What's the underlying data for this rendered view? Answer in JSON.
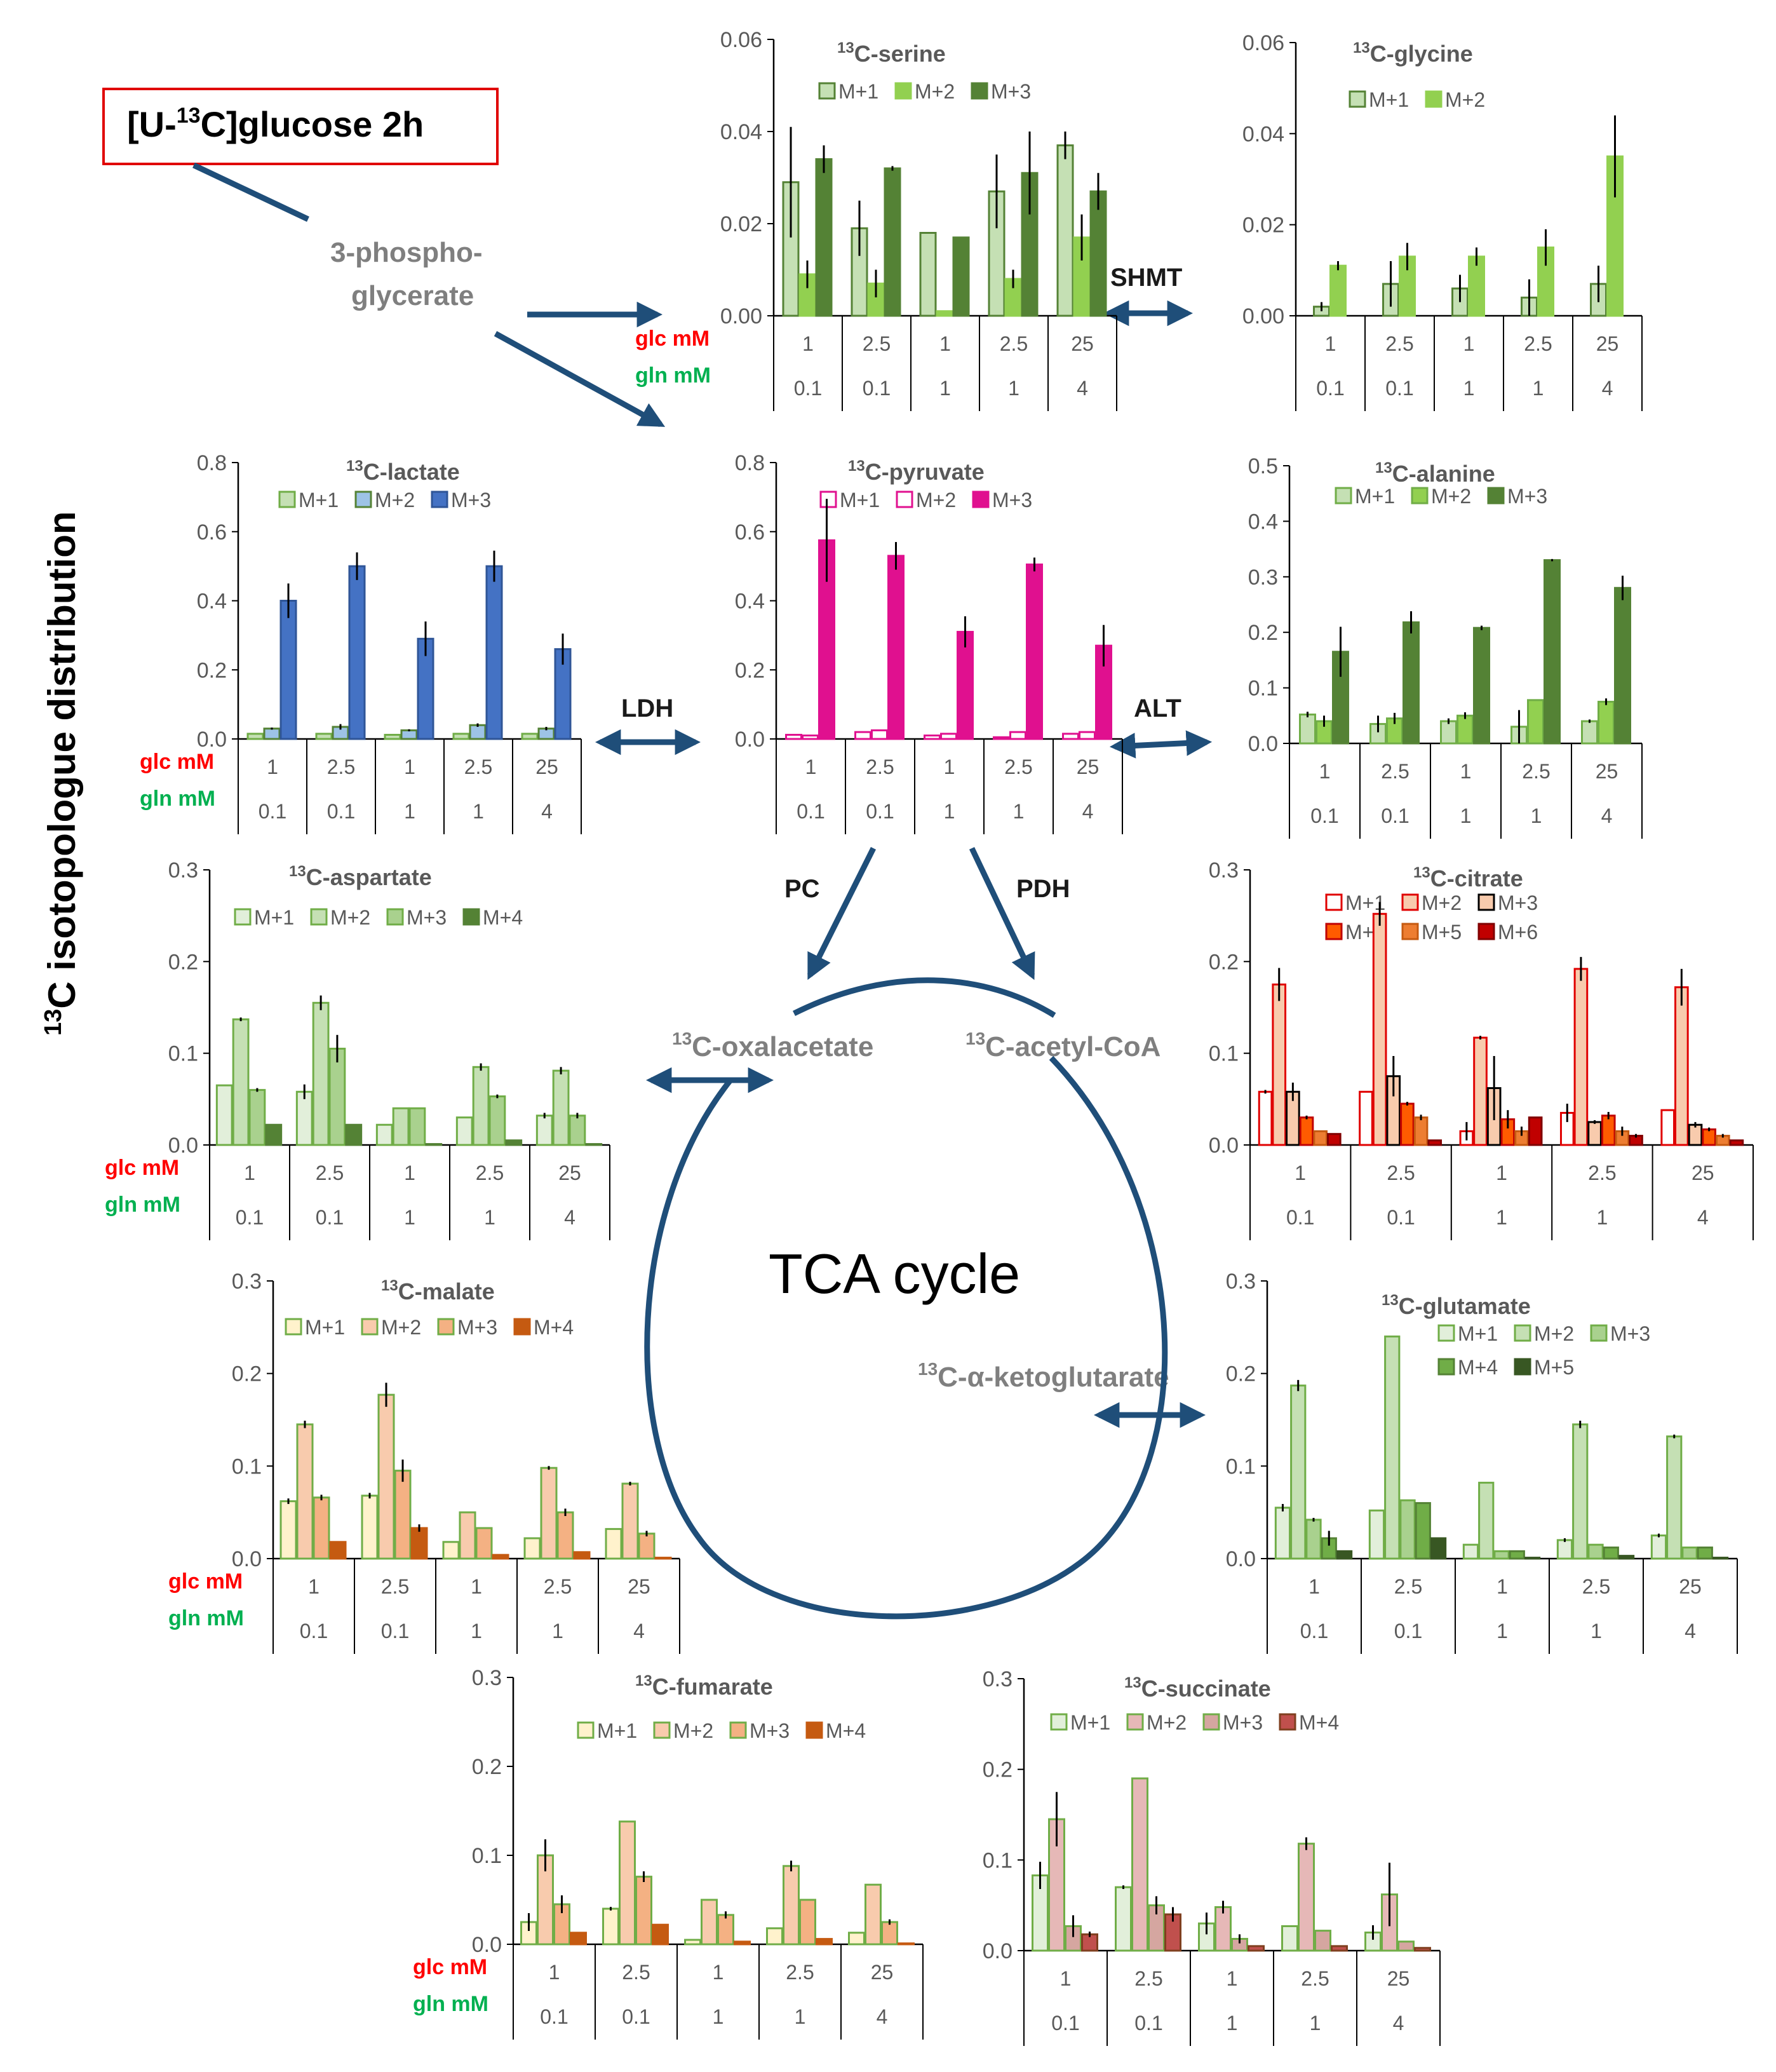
{
  "colors": {
    "arrow": "#1f4e79",
    "glc_label": "#ff0000",
    "gln_label": "#00b050",
    "axis": "#000000",
    "text_gray": "#595959",
    "tracer_box": "#e00000"
  },
  "figure": {
    "y_axis_label_iso": "13",
    "y_axis_label_rest": "C isotopologue distribution",
    "tracer_pre": "[U-",
    "tracer_sup": "13",
    "tracer_post": "C]glucose 2h",
    "tca_label": "TCA cycle",
    "glc_row_label": "glc mM",
    "gln_row_label": "gln mM",
    "metabolites": {
      "pg_line1": "3-phospho-",
      "pg_line2": "glycerate",
      "oaa_sup": "13",
      "oaa": "C-oxalacetate",
      "acoa_sup": "13",
      "acoa": "C-acetyl-CoA",
      "akg_sup": "13",
      "akg": "C-α-ketoglutarate"
    },
    "enzymes": {
      "shmt": "SHMT",
      "ldh": "LDH",
      "alt": "ALT",
      "pc": "PC",
      "pdh": "PDH"
    },
    "conditions_glc": [
      "1",
      "2.5",
      "1",
      "2.5",
      "25"
    ],
    "conditions_gln": [
      "0.1",
      "0.1",
      "1",
      "1",
      "4"
    ]
  },
  "chart_data": [
    {
      "id": "serine",
      "type": "bar",
      "title_sup": "13",
      "title": "C-serine",
      "ylim": [
        0,
        0.06
      ],
      "yticks": [
        "0.00",
        "0.02",
        "0.04",
        "0.06"
      ],
      "categories": [
        "1 / 0.1",
        "2.5 / 0.1",
        "1 / 1",
        "2.5 / 1",
        "25 / 4"
      ],
      "series": [
        {
          "name": "M+1",
          "color": "#c5e0b4",
          "edge": "#548235",
          "values": [
            0.029,
            0.019,
            0.018,
            0.027,
            0.037
          ],
          "err": [
            0.012,
            0.006,
            0,
            0.008,
            0.003
          ]
        },
        {
          "name": "M+2",
          "color": "#92d050",
          "edge": "#92d050",
          "values": [
            0.009,
            0.007,
            0.001,
            0.008,
            0.017
          ],
          "err": [
            0.003,
            0.003,
            0,
            0.002,
            0.005
          ]
        },
        {
          "name": "M+3",
          "color": "#548235",
          "edge": "#548235",
          "values": [
            0.034,
            0.032,
            0.017,
            0.031,
            0.027
          ],
          "err": [
            0.003,
            0.0005,
            0,
            0.009,
            0.004
          ]
        }
      ]
    },
    {
      "id": "glycine",
      "type": "bar",
      "title_sup": "13",
      "title": "C-glycine",
      "ylim": [
        0,
        0.06
      ],
      "yticks": [
        "0.00",
        "0.02",
        "0.04",
        "0.06"
      ],
      "categories": [
        "1 / 0.1",
        "2.5 / 0.1",
        "1 / 1",
        "2.5 / 1",
        "25 / 4"
      ],
      "series": [
        {
          "name": "M+1",
          "color": "#c5e0b4",
          "edge": "#548235",
          "values": [
            0.002,
            0.007,
            0.006,
            0.004,
            0.007
          ],
          "err": [
            0.001,
            0.005,
            0.003,
            0.004,
            0.004
          ]
        },
        {
          "name": "M+2",
          "color": "#92d050",
          "edge": "#92d050",
          "values": [
            0.011,
            0.013,
            0.013,
            0.015,
            0.035
          ],
          "err": [
            0.001,
            0.003,
            0.002,
            0.004,
            0.009
          ]
        }
      ]
    },
    {
      "id": "lactate",
      "type": "bar",
      "title_sup": "13",
      "title": "C-lactate",
      "ylim": [
        0,
        0.8
      ],
      "yticks": [
        "0.0",
        "0.2",
        "0.4",
        "0.6",
        "0.8"
      ],
      "categories": [
        "1 / 0.1",
        "2.5 / 0.1",
        "1 / 1",
        "2.5 / 1",
        "25 / 4"
      ],
      "series": [
        {
          "name": "M+1",
          "color": "#c5e0b4",
          "edge": "#70ad47",
          "values": [
            0.015,
            0.015,
            0.012,
            0.015,
            0.015
          ],
          "err": [
            0,
            0,
            0,
            0,
            0
          ]
        },
        {
          "name": "M+2",
          "color": "#9dc3e6",
          "edge": "#548235",
          "values": [
            0.03,
            0.035,
            0.025,
            0.04,
            0.03
          ],
          "err": [
            0.003,
            0.008,
            0.003,
            0.005,
            0.005
          ]
        },
        {
          "name": "M+3",
          "color": "#4472c4",
          "edge": "#2f5597",
          "values": [
            0.4,
            0.5,
            0.29,
            0.5,
            0.26
          ],
          "err": [
            0.05,
            0.04,
            0.05,
            0.045,
            0.045
          ]
        }
      ]
    },
    {
      "id": "pyruvate",
      "type": "bar",
      "title_sup": "13",
      "title": "C-pyruvate",
      "ylim": [
        0,
        0.8
      ],
      "yticks": [
        "0.0",
        "0.2",
        "0.4",
        "0.6",
        "0.8"
      ],
      "categories": [
        "1 / 0.1",
        "2.5 / 0.1",
        "1 / 1",
        "2.5 / 1",
        "25 / 4"
      ],
      "series": [
        {
          "name": "M+1",
          "color": "#ffffff",
          "edge": "#e0108f",
          "values": [
            0.012,
            0.02,
            0.01,
            0.005,
            0.015
          ],
          "err": [
            0,
            0,
            0,
            0,
            0
          ]
        },
        {
          "name": "M+2",
          "color": "#ffffff",
          "edge": "#e0108f",
          "values": [
            0.01,
            0.025,
            0.015,
            0.02,
            0.02
          ],
          "err": [
            0,
            0,
            0,
            0,
            0
          ]
        },
        {
          "name": "M+3",
          "color": "#e0108f",
          "edge": "#e0108f",
          "values": [
            0.575,
            0.53,
            0.31,
            0.505,
            0.27
          ],
          "err": [
            0.12,
            0.04,
            0.045,
            0.02,
            0.06
          ]
        }
      ]
    },
    {
      "id": "alanine",
      "type": "bar",
      "title_sup": "13",
      "title": "C-alanine",
      "ylim": [
        0,
        0.5
      ],
      "yticks": [
        "0.0",
        "0.1",
        "0.2",
        "0.3",
        "0.4",
        "0.5"
      ],
      "categories": [
        "1 / 0.1",
        "2.5 / 0.1",
        "1 / 1",
        "2.5 / 1",
        "25 / 4"
      ],
      "series": [
        {
          "name": "M+1",
          "color": "#c5e0b4",
          "edge": "#70ad47",
          "values": [
            0.052,
            0.035,
            0.04,
            0.03,
            0.04
          ],
          "err": [
            0.005,
            0.015,
            0.005,
            0.03,
            0.003
          ]
        },
        {
          "name": "M+2",
          "color": "#92d050",
          "edge": "#70ad47",
          "values": [
            0.04,
            0.045,
            0.05,
            0.078,
            0.075
          ],
          "err": [
            0.01,
            0.01,
            0.006,
            0,
            0.006
          ]
        },
        {
          "name": "M+3",
          "color": "#548235",
          "edge": "#548235",
          "values": [
            0.165,
            0.218,
            0.208,
            0.33,
            0.28
          ],
          "err": [
            0.045,
            0.02,
            0.004,
            0.002,
            0.022
          ]
        }
      ]
    },
    {
      "id": "aspartate",
      "type": "bar",
      "title_sup": "13",
      "title": "C-aspartate",
      "ylim": [
        0,
        0.3
      ],
      "yticks": [
        "0.0",
        "0.1",
        "0.2",
        "0.3"
      ],
      "categories": [
        "1 / 0.1",
        "2.5 / 0.1",
        "1 / 1",
        "2.5 / 1",
        "25 / 4"
      ],
      "series": [
        {
          "name": "M+1",
          "color": "#e2efda",
          "edge": "#70ad47",
          "values": [
            0.065,
            0.058,
            0.022,
            0.03,
            0.032
          ],
          "err": [
            0,
            0.008,
            0,
            0,
            0.003
          ]
        },
        {
          "name": "M+2",
          "color": "#c5e0b4",
          "edge": "#70ad47",
          "values": [
            0.137,
            0.155,
            0.04,
            0.085,
            0.081
          ],
          "err": [
            0.002,
            0.008,
            0,
            0.004,
            0.004
          ]
        },
        {
          "name": "M+3",
          "color": "#a9d18e",
          "edge": "#70ad47",
          "values": [
            0.06,
            0.105,
            0.04,
            0.053,
            0.032
          ],
          "err": [
            0.002,
            0.015,
            0,
            0.002,
            0.003
          ]
        },
        {
          "name": "M+4",
          "color": "#548235",
          "edge": "#548235",
          "values": [
            0.022,
            0.022,
            0.001,
            0.005,
            0.001
          ],
          "err": [
            0,
            0,
            0,
            0,
            0
          ]
        }
      ]
    },
    {
      "id": "citrate",
      "type": "bar",
      "title_sup": "13",
      "title": "C-citrate",
      "ylim": [
        0,
        0.3
      ],
      "yticks": [
        "0.0",
        "0.1",
        "0.2",
        "0.3"
      ],
      "categories": [
        "1 / 0.1",
        "2.5 / 0.1",
        "1 / 1",
        "2.5 / 1",
        "25 / 4"
      ],
      "series": [
        {
          "name": "M+1",
          "color": "#ffffff",
          "edge": "#e00000",
          "values": [
            0.058,
            0.058,
            0.015,
            0.035,
            0.038
          ],
          "err": [
            0.002,
            0,
            0.01,
            0.01,
            0
          ]
        },
        {
          "name": "M+2",
          "color": "#f8cbad",
          "edge": "#e00000",
          "values": [
            0.175,
            0.252,
            0.117,
            0.192,
            0.172
          ],
          "err": [
            0.018,
            0.013,
            0.002,
            0.013,
            0.02
          ]
        },
        {
          "name": "M+3",
          "color": "#f8cbad",
          "edge": "#000000",
          "values": [
            0.058,
            0.075,
            0.062,
            0.025,
            0.022
          ],
          "err": [
            0.01,
            0.022,
            0.035,
            0.002,
            0.003
          ]
        },
        {
          "name": "M+4",
          "color": "#ff5b00",
          "edge": "#c00000",
          "values": [
            0.03,
            0.045,
            0.028,
            0.032,
            0.017
          ],
          "err": [
            0.002,
            0.002,
            0.01,
            0.004,
            0.002
          ]
        },
        {
          "name": "M+5",
          "color": "#ed7d31",
          "edge": "#c55a11",
          "values": [
            0.015,
            0.03,
            0.015,
            0.015,
            0.01
          ],
          "err": [
            0,
            0.003,
            0.005,
            0.005,
            0.002
          ]
        },
        {
          "name": "M+6",
          "color": "#c00000",
          "edge": "#800000",
          "values": [
            0.012,
            0.005,
            0.03,
            0.01,
            0.005
          ],
          "err": [
            0,
            0,
            0,
            0.002,
            0
          ]
        }
      ]
    },
    {
      "id": "malate",
      "type": "bar",
      "title_sup": "13",
      "title": "C-malate",
      "ylim": [
        0,
        0.3
      ],
      "yticks": [
        "0.0",
        "0.1",
        "0.2",
        "0.3"
      ],
      "categories": [
        "1 / 0.1",
        "2.5 / 0.1",
        "1 / 1",
        "2.5 / 1",
        "25 / 4"
      ],
      "series": [
        {
          "name": "M+1",
          "color": "#fff2cc",
          "edge": "#70ad47",
          "values": [
            0.062,
            0.068,
            0.018,
            0.022,
            0.032
          ],
          "err": [
            0.003,
            0.003,
            0,
            0,
            0
          ]
        },
        {
          "name": "M+2",
          "color": "#f8cbad",
          "edge": "#70ad47",
          "values": [
            0.145,
            0.177,
            0.05,
            0.098,
            0.081
          ],
          "err": [
            0.004,
            0.013,
            0,
            0.002,
            0.002
          ]
        },
        {
          "name": "M+3",
          "color": "#f4b183",
          "edge": "#70ad47",
          "values": [
            0.066,
            0.095,
            0.033,
            0.05,
            0.027
          ],
          "err": [
            0.003,
            0.012,
            0,
            0.004,
            0.003
          ]
        },
        {
          "name": "M+4",
          "color": "#c55a11",
          "edge": "#c55a11",
          "values": [
            0.018,
            0.033,
            0.004,
            0.007,
            0.001
          ],
          "err": [
            0,
            0.004,
            0,
            0,
            0
          ]
        }
      ]
    },
    {
      "id": "glutamate",
      "type": "bar",
      "title_sup": "13",
      "title": "C-glutamate",
      "ylim": [
        0,
        0.3
      ],
      "yticks": [
        "0.0",
        "0.1",
        "0.2",
        "0.3"
      ],
      "categories": [
        "1 / 0.1",
        "2.5 / 0.1",
        "1 / 1",
        "2.5 / 1",
        "25 / 4"
      ],
      "series": [
        {
          "name": "M+1",
          "color": "#e2efda",
          "edge": "#70ad47",
          "values": [
            0.055,
            0.052,
            0.015,
            0.02,
            0.025
          ],
          "err": [
            0.004,
            0,
            0,
            0.002,
            0.002
          ]
        },
        {
          "name": "M+2",
          "color": "#c5e0b4",
          "edge": "#70ad47",
          "values": [
            0.187,
            0.24,
            0.082,
            0.145,
            0.132
          ],
          "err": [
            0.006,
            0,
            0,
            0.004,
            0.002
          ]
        },
        {
          "name": "M+3",
          "color": "#a9d18e",
          "edge": "#70ad47",
          "values": [
            0.042,
            0.063,
            0.008,
            0.015,
            0.012
          ],
          "err": [
            0.002,
            0,
            0,
            0,
            0
          ]
        },
        {
          "name": "M+4",
          "color": "#70ad47",
          "edge": "#548235",
          "values": [
            0.022,
            0.06,
            0.008,
            0.012,
            0.012
          ],
          "err": [
            0.008,
            0,
            0,
            0,
            0
          ]
        },
        {
          "name": "M+5",
          "color": "#385723",
          "edge": "#385723",
          "values": [
            0.008,
            0.022,
            0.001,
            0.003,
            0.001
          ],
          "err": [
            0,
            0,
            0,
            0,
            0
          ]
        }
      ]
    },
    {
      "id": "fumarate",
      "type": "bar",
      "title_sup": "13",
      "title": "C-fumarate",
      "ylim": [
        0,
        0.3
      ],
      "yticks": [
        "0.0",
        "0.1",
        "0.2",
        "0.3"
      ],
      "categories": [
        "1 / 0.1",
        "2.5 / 0.1",
        "1 / 1",
        "2.5 / 1",
        "25 / 4"
      ],
      "series": [
        {
          "name": "M+1",
          "color": "#fff2cc",
          "edge": "#70ad47",
          "values": [
            0.025,
            0.04,
            0.005,
            0.018,
            0.013
          ],
          "err": [
            0.01,
            0.002,
            0,
            0,
            0
          ]
        },
        {
          "name": "M+2",
          "color": "#f8cbad",
          "edge": "#70ad47",
          "values": [
            0.1,
            0.138,
            0.05,
            0.088,
            0.067
          ],
          "err": [
            0.018,
            0,
            0,
            0.006,
            0
          ]
        },
        {
          "name": "M+3",
          "color": "#f4b183",
          "edge": "#70ad47",
          "values": [
            0.045,
            0.076,
            0.033,
            0.05,
            0.025
          ],
          "err": [
            0.01,
            0.006,
            0.004,
            0,
            0.003
          ]
        },
        {
          "name": "M+4",
          "color": "#c55a11",
          "edge": "#c55a11",
          "values": [
            0.013,
            0.022,
            0.003,
            0.006,
            0.001
          ],
          "err": [
            0,
            0,
            0,
            0,
            0
          ]
        }
      ]
    },
    {
      "id": "succinate",
      "type": "bar",
      "title_sup": "13",
      "title": "C-succinate",
      "ylim": [
        0,
        0.3
      ],
      "yticks": [
        "0.0",
        "0.1",
        "0.2",
        "0.3"
      ],
      "categories": [
        "1 / 0.1",
        "2.5 / 0.1",
        "1 / 1",
        "2.5 / 1",
        "25 / 4"
      ],
      "series": [
        {
          "name": "M+1",
          "color": "#e2efda",
          "edge": "#70ad47",
          "values": [
            0.083,
            0.07,
            0.03,
            0.027,
            0.02
          ],
          "err": [
            0.015,
            0.002,
            0.012,
            0,
            0.008
          ]
        },
        {
          "name": "M+2",
          "color": "#e6b8b7",
          "edge": "#70ad47",
          "values": [
            0.145,
            0.19,
            0.048,
            0.118,
            0.062
          ],
          "err": [
            0.03,
            0,
            0.007,
            0.007,
            0.035
          ]
        },
        {
          "name": "M+3",
          "color": "#d5a6a0",
          "edge": "#70ad47",
          "values": [
            0.027,
            0.05,
            0.013,
            0.022,
            0.01
          ],
          "err": [
            0.012,
            0.01,
            0.005,
            0,
            0
          ]
        },
        {
          "name": "M+4",
          "color": "#c0504d",
          "edge": "#7f3f1f",
          "values": [
            0.018,
            0.04,
            0.005,
            0.005,
            0.003
          ],
          "err": [
            0.003,
            0.008,
            0,
            0,
            0
          ]
        }
      ]
    }
  ]
}
